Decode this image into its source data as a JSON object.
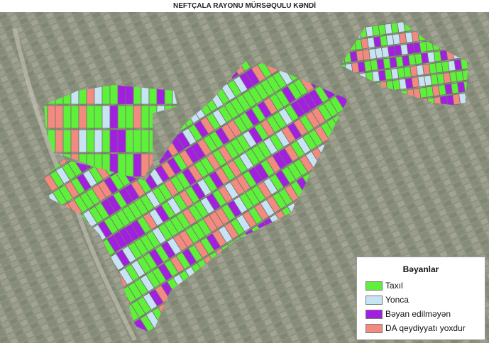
{
  "title": "NEFTÇALA RAYONU MÜRSƏQULU  KƏNDİ",
  "legend": {
    "title": "Bəyanlar",
    "items": [
      {
        "label": "Taxıl",
        "color": "#5ef03a"
      },
      {
        "label": "Yonca",
        "color": "#c6e4f4"
      },
      {
        "label": "Bəyan edilməyən",
        "color": "#a31fe0"
      },
      {
        "label": "DA qeydiyyatı yoxdur",
        "color": "#f28a80"
      }
    ]
  },
  "background_color": "#8c907f"
}
